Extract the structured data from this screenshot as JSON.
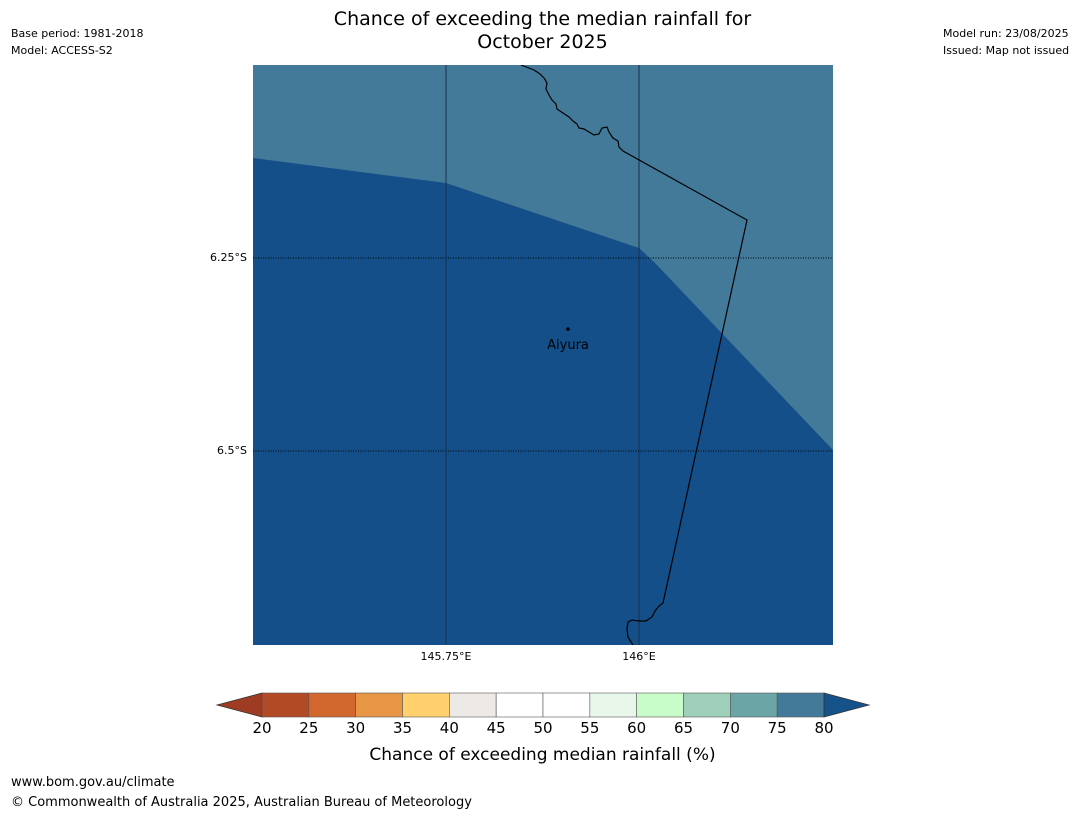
{
  "title": {
    "line1": "Chance of exceeding the median rainfall for",
    "line2": "October 2025"
  },
  "meta_left": {
    "base_period": "Base period: 1981-2018",
    "model": "Model: ACCESS-S2"
  },
  "meta_right": {
    "model_run": "Model run: 23/08/2025",
    "issued": "Issued: Map not issued"
  },
  "map": {
    "lat_labels": [
      "6.25°S",
      "6.5°S"
    ],
    "lon_labels": [
      "145.75°E",
      "146°E"
    ],
    "place": "Aiyura",
    "region_colors": {
      "upper": "#437a9a",
      "lower": "#144f89"
    }
  },
  "colorbar": {
    "title": "Chance of exceeding median rainfall (%)",
    "ticks": [
      "20",
      "25",
      "30",
      "35",
      "40",
      "45",
      "50",
      "55",
      "60",
      "65",
      "70",
      "75",
      "80"
    ],
    "under_color": "#9d3c23",
    "over_color": "#16528a",
    "colors": [
      "#b24a26",
      "#d3682f",
      "#e69645",
      "#ffd06b",
      "#ede9e6",
      "#ffffff",
      "#ffffff",
      "#e9f7ea",
      "#c8fcc9",
      "#9ecfb8",
      "#6ca5a5",
      "#437a9a"
    ]
  },
  "footer": {
    "url": "www.bom.gov.au/climate",
    "copyright": "© Commonwealth of Australia 2025, Australian Bureau of Meteorology"
  }
}
